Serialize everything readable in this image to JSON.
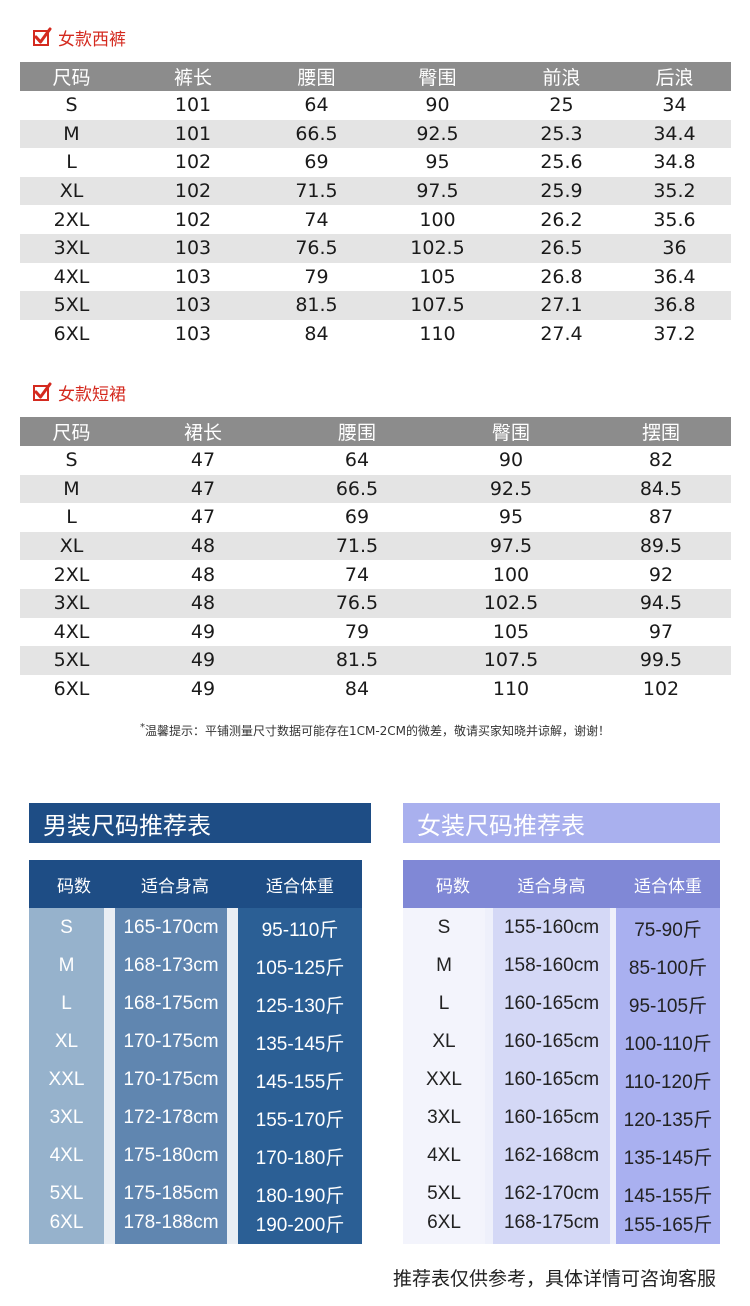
{
  "pants": {
    "title": "女款西裤",
    "headers": [
      "尺码",
      "裤长",
      "腰围",
      "臀围",
      "前浪",
      "后浪"
    ],
    "rows": [
      [
        "S",
        "101",
        "64",
        "90",
        "25",
        "34"
      ],
      [
        "M",
        "101",
        "66.5",
        "92.5",
        "25.3",
        "34.4"
      ],
      [
        "L",
        "102",
        "69",
        "95",
        "25.6",
        "34.8"
      ],
      [
        "XL",
        "102",
        "71.5",
        "97.5",
        "25.9",
        "35.2"
      ],
      [
        "2XL",
        "102",
        "74",
        "100",
        "26.2",
        "35.6"
      ],
      [
        "3XL",
        "103",
        "76.5",
        "102.5",
        "26.5",
        "36"
      ],
      [
        "4XL",
        "103",
        "79",
        "105",
        "26.8",
        "36.4"
      ],
      [
        "5XL",
        "103",
        "81.5",
        "107.5",
        "27.1",
        "36.8"
      ],
      [
        "6XL",
        "103",
        "84",
        "110",
        "27.4",
        "37.2"
      ]
    ]
  },
  "skirt": {
    "title": "女款短裙",
    "headers": [
      "尺码",
      "裙长",
      "腰围",
      "臀围",
      "摆围"
    ],
    "rows": [
      [
        "S",
        "47",
        "64",
        "90",
        "82"
      ],
      [
        "M",
        "47",
        "66.5",
        "92.5",
        "84.5"
      ],
      [
        "L",
        "47",
        "69",
        "95",
        "87"
      ],
      [
        "XL",
        "48",
        "71.5",
        "97.5",
        "89.5"
      ],
      [
        "2XL",
        "48",
        "74",
        "100",
        "92"
      ],
      [
        "3XL",
        "48",
        "76.5",
        "102.5",
        "94.5"
      ],
      [
        "4XL",
        "49",
        "79",
        "105",
        "97"
      ],
      [
        "5XL",
        "49",
        "81.5",
        "107.5",
        "99.5"
      ],
      [
        "6XL",
        "49",
        "84",
        "110",
        "102"
      ]
    ]
  },
  "note": {
    "star": "*",
    "text": "温馨提示：平铺测量尺寸数据可能存在1CM-2CM的微差，敬请买家知晓并谅解，谢谢！"
  },
  "men_recommend": {
    "title": "男装尺码推荐表",
    "headers": [
      "码数",
      "适合身高",
      "适合体重"
    ],
    "rows": [
      [
        "S",
        "165-170cm",
        "95-110斤"
      ],
      [
        "M",
        "168-173cm",
        "105-125斤"
      ],
      [
        "L",
        "168-175cm",
        "125-130斤"
      ],
      [
        "XL",
        "170-175cm",
        "135-145斤"
      ],
      [
        "XXL",
        "170-175cm",
        "145-155斤"
      ],
      [
        "3XL",
        "172-178cm",
        "155-170斤"
      ],
      [
        "4XL",
        "175-180cm",
        "170-180斤"
      ],
      [
        "5XL",
        "175-185cm",
        "180-190斤"
      ],
      [
        "6XL",
        "178-188cm",
        "190-200斤"
      ]
    ]
  },
  "women_recommend": {
    "title": "女装尺码推荐表",
    "headers": [
      "码数",
      "适合身高",
      "适合体重"
    ],
    "rows": [
      [
        "S",
        "155-160cm",
        "75-90斤"
      ],
      [
        "M",
        "158-160cm",
        "85-100斤"
      ],
      [
        "L",
        "160-165cm",
        "95-105斤"
      ],
      [
        "XL",
        "160-165cm",
        "100-110斤"
      ],
      [
        "XXL",
        "160-165cm",
        "110-120斤"
      ],
      [
        "3XL",
        "160-165cm",
        "120-135斤"
      ],
      [
        "4XL",
        "162-168cm",
        "135-145斤"
      ],
      [
        "5XL",
        "162-170cm",
        "145-155斤"
      ],
      [
        "6XL",
        "168-175cm",
        "155-165斤"
      ]
    ]
  },
  "footer": "推荐表仅供参考，具体详情可咨询客服",
  "colors": {
    "accent_red": "#d42a1f",
    "men_banner": "#1e4d85",
    "women_banner": "#a9b0ee",
    "table_header": "#8c8c8c"
  }
}
